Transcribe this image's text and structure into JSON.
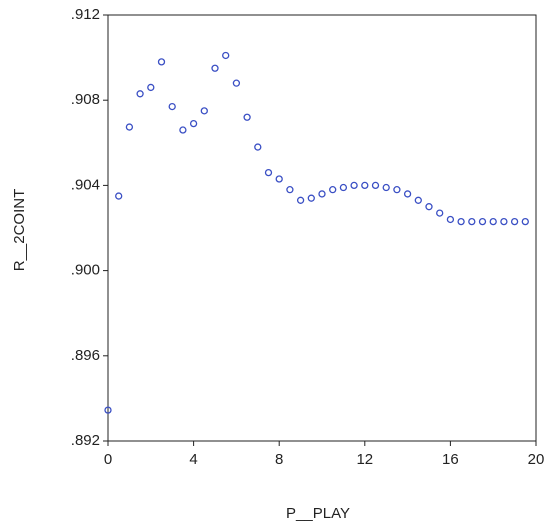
{
  "chart_data": {
    "type": "scatter",
    "xlabel": "P__PLAY",
    "ylabel": "R__2COINT",
    "color": "#3a4fc4",
    "x": [
      0,
      0.5,
      1,
      1.5,
      2,
      2.5,
      3,
      3.5,
      4,
      4.5,
      5,
      5.5,
      6,
      6.5,
      7,
      7.5,
      8,
      8.5,
      9,
      9.5,
      10,
      10.5,
      11,
      11.5,
      12,
      12.5,
      13,
      13.5,
      14,
      14.5,
      15,
      15.5,
      16,
      16.5,
      17,
      17.5,
      18,
      18.5,
      19,
      19.5
    ],
    "values": [
      0.89345,
      0.9035,
      0.90674,
      0.9083,
      0.9086,
      0.9098,
      0.9077,
      0.9066,
      0.9069,
      0.9075,
      0.9095,
      0.9101,
      0.9088,
      0.9072,
      0.9058,
      0.9046,
      0.9043,
      0.9038,
      0.9033,
      0.9034,
      0.9036,
      0.9038,
      0.9039,
      0.904,
      0.904,
      0.904,
      0.9039,
      0.9038,
      0.9036,
      0.9033,
      0.903,
      0.9027,
      0.9024,
      0.9023,
      0.9023,
      0.9023,
      0.9023,
      0.9023,
      0.9023,
      0.9023
    ],
    "xlim": [
      0,
      20
    ],
    "xticks": [
      0,
      4,
      8,
      12,
      16,
      20
    ],
    "ylim": [
      0.892,
      0.912
    ],
    "yticks": [
      {
        "value": 0.892,
        "label": ".892"
      },
      {
        "value": 0.896,
        "label": ".896"
      },
      {
        "value": 0.9,
        "label": ".900"
      },
      {
        "value": 0.904,
        "label": ".904"
      },
      {
        "value": 0.908,
        "label": ".908"
      },
      {
        "value": 0.912,
        "label": ".912"
      }
    ]
  }
}
